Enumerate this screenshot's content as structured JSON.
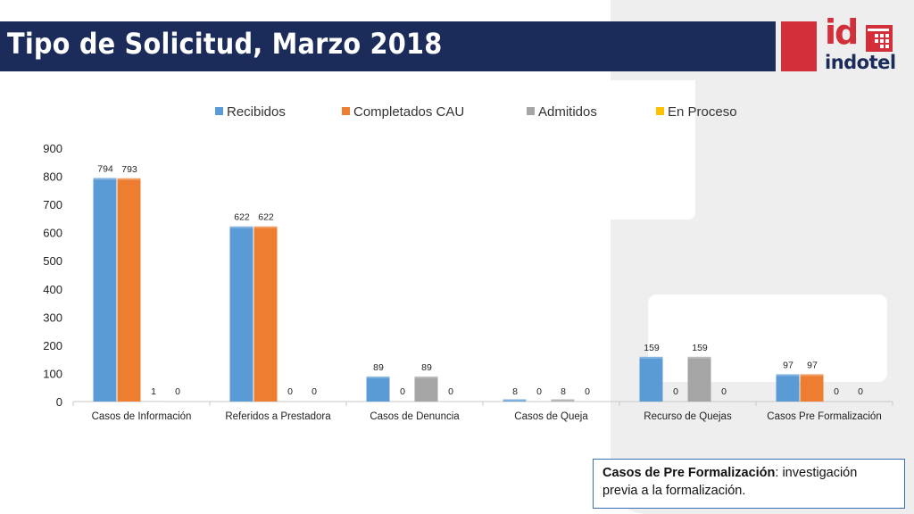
{
  "header": {
    "title": "Tipo de Solicitud, Marzo 2018"
  },
  "logo": {
    "mark": "id",
    "wordmark": "indotel"
  },
  "note": {
    "term": "Casos de Pre Formalización",
    "definition": ": investigación previa a la formalización."
  },
  "colors": {
    "title_bar": "#1b2b5a",
    "brand_red": "#d32f3a"
  },
  "chart_data": {
    "type": "bar",
    "title": "",
    "xlabel": "",
    "ylabel": "",
    "ylim": [
      0,
      900
    ],
    "yticks": [
      0,
      100,
      200,
      300,
      400,
      500,
      600,
      700,
      800,
      900
    ],
    "grid": false,
    "legend_position": "top",
    "categories": [
      "Casos de Información",
      "Referidos a Prestadora",
      "Casos de Denuncia",
      "Casos de Queja",
      "Recurso de Quejas",
      "Casos Pre Formalización"
    ],
    "series": [
      {
        "name": "Recibidos",
        "color": "#5b9bd5",
        "values": [
          794,
          622,
          89,
          8,
          159,
          97
        ]
      },
      {
        "name": "Completados CAU",
        "color": "#ed7d31",
        "values": [
          793,
          622,
          0,
          0,
          0,
          97
        ]
      },
      {
        "name": "Admitidos",
        "color": "#a5a5a5",
        "values": [
          1,
          0,
          89,
          8,
          159,
          0
        ]
      },
      {
        "name": "En Proceso",
        "color": "#ffc000",
        "values": [
          0,
          0,
          0,
          0,
          0,
          0
        ]
      }
    ]
  }
}
